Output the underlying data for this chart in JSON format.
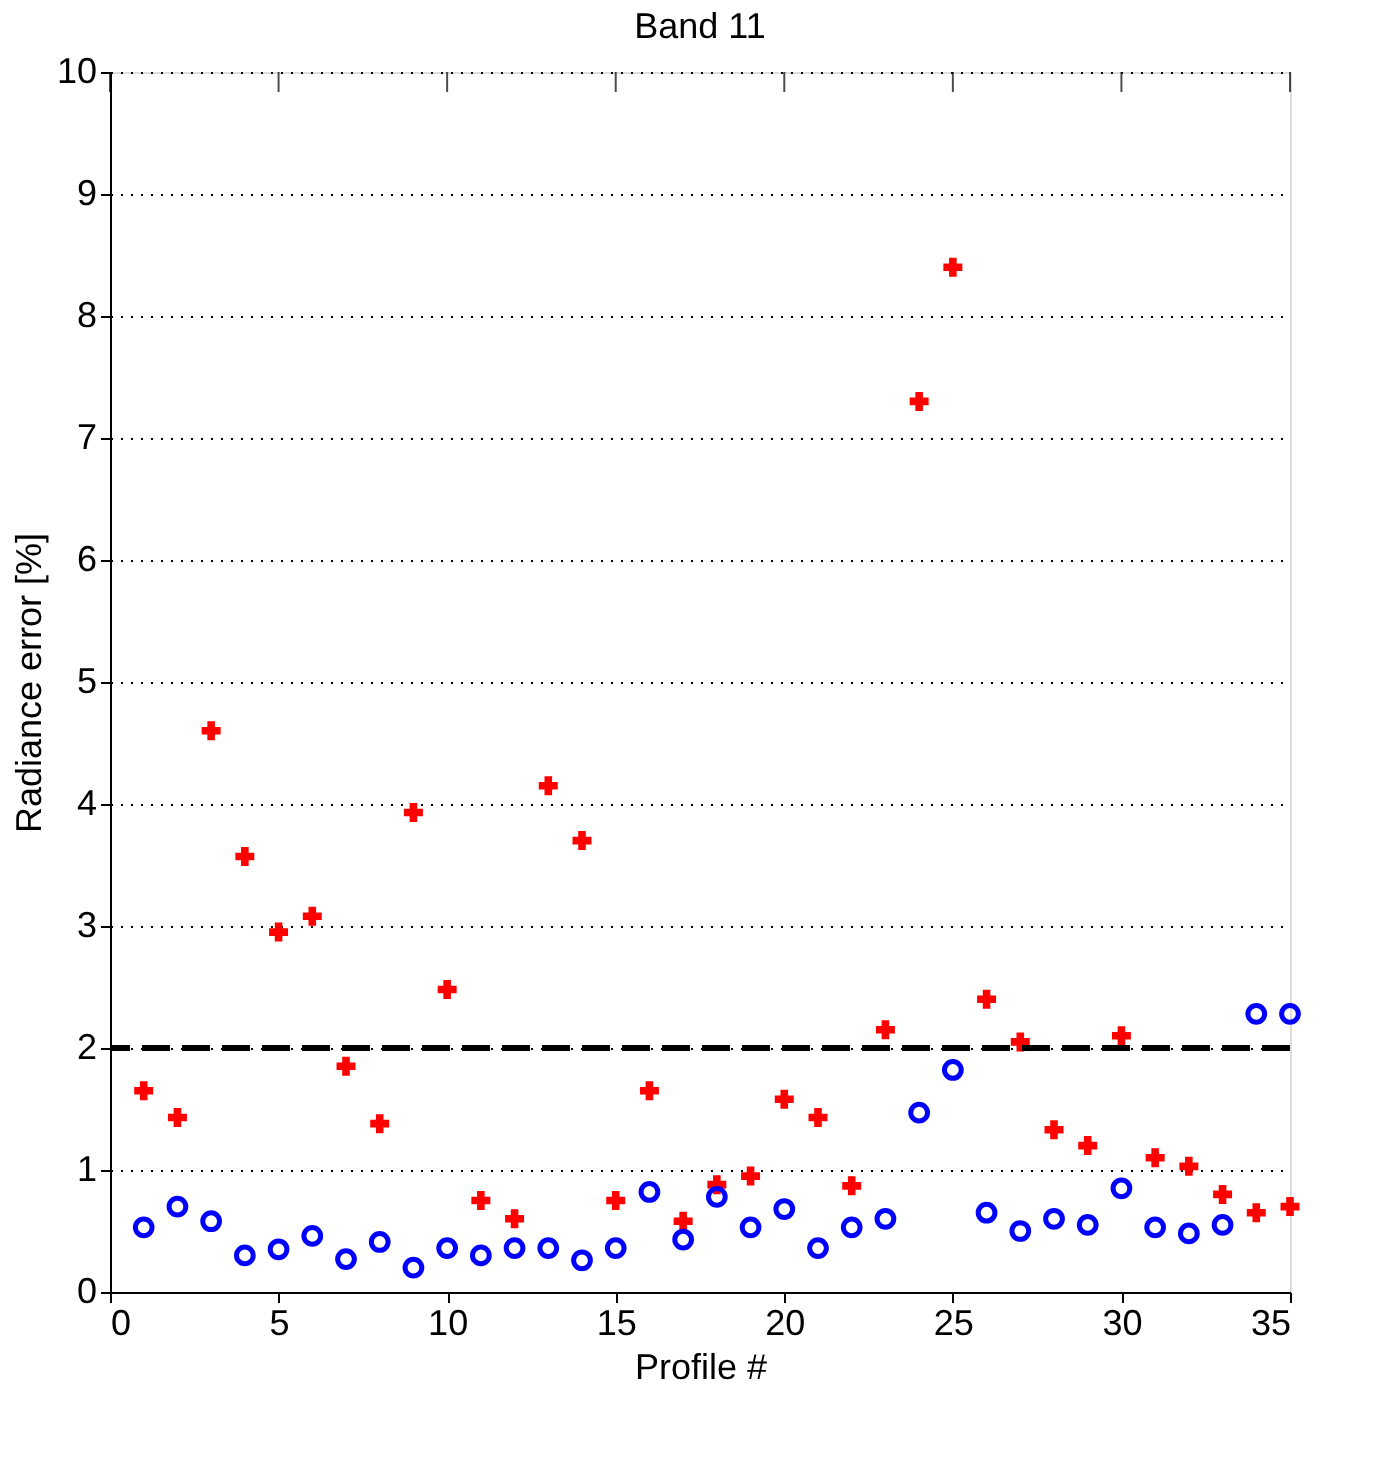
{
  "chart_data": {
    "type": "scatter",
    "title": "Band 11",
    "xlabel": "Profile #",
    "ylabel": "Radiance error [%]",
    "x": [
      1,
      2,
      3,
      4,
      5,
      6,
      7,
      8,
      9,
      10,
      11,
      12,
      13,
      14,
      15,
      16,
      17,
      18,
      19,
      20,
      21,
      22,
      23,
      24,
      25,
      26,
      27,
      28,
      29,
      30,
      31,
      32,
      33,
      34,
      35
    ],
    "series": [
      {
        "color": "#ff0000",
        "marker": "cross",
        "values": [
          1.65,
          1.43,
          4.6,
          3.57,
          2.95,
          3.08,
          1.85,
          1.38,
          3.93,
          2.48,
          0.75,
          0.6,
          4.15,
          3.7,
          0.75,
          1.65,
          0.58,
          0.88,
          0.95,
          1.58,
          1.43,
          0.87,
          2.15,
          7.3,
          8.4,
          2.4,
          2.05,
          1.33,
          1.2,
          2.1,
          1.1,
          1.03,
          0.8,
          0.65,
          0.7
        ]
      },
      {
        "color": "#0000ff",
        "marker": "circle",
        "values": [
          0.53,
          0.7,
          0.58,
          0.3,
          0.35,
          0.46,
          0.27,
          0.41,
          0.2,
          0.36,
          0.3,
          0.36,
          0.36,
          0.26,
          0.36,
          0.82,
          0.43,
          0.78,
          0.53,
          0.68,
          0.36,
          0.53,
          0.6,
          1.47,
          1.82,
          0.65,
          0.5,
          0.6,
          0.55,
          0.85,
          0.53,
          0.48,
          0.55,
          2.28,
          2.28
        ]
      }
    ],
    "ref_lines": [
      {
        "axis": "y",
        "value": 2,
        "color": "#000000",
        "line_style": "dashed"
      }
    ],
    "xlim": [
      0,
      35
    ],
    "xticks": [
      0,
      5,
      10,
      15,
      20,
      25,
      30,
      35
    ],
    "ylim": [
      0,
      10
    ],
    "yticks": [
      0,
      1,
      2,
      3,
      4,
      5,
      6,
      7,
      8,
      9,
      10
    ],
    "grid": "y"
  }
}
